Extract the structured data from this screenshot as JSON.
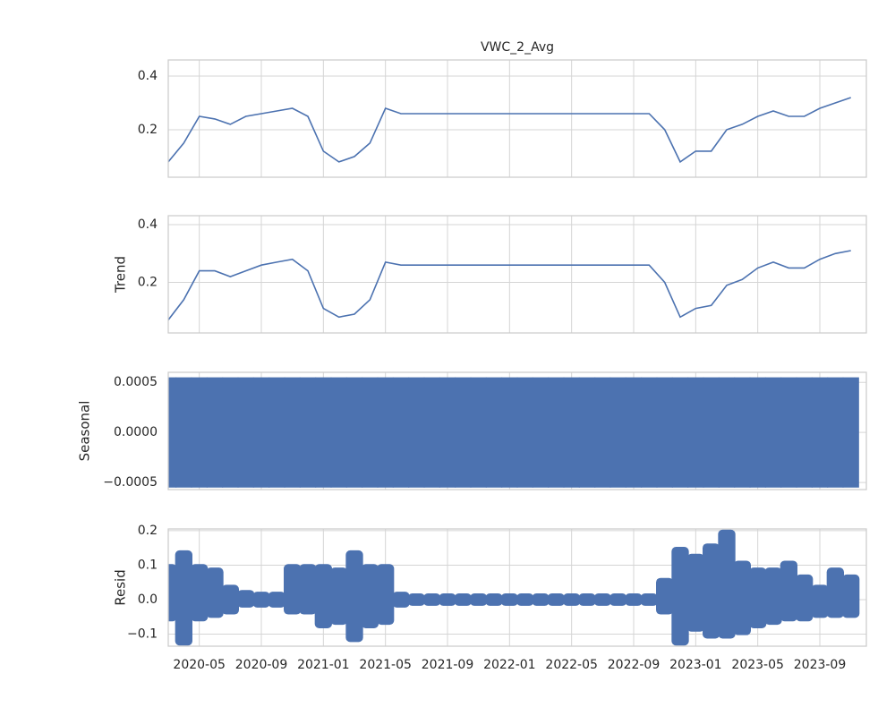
{
  "chart_data": [
    {
      "type": "line",
      "title": "VWC_2_Avg",
      "color": "#4c72b0",
      "x": [
        "2020-03",
        "2020-04",
        "2020-05",
        "2020-06",
        "2020-07",
        "2020-08",
        "2020-09",
        "2020-10",
        "2020-11",
        "2020-12",
        "2021-01",
        "2021-02",
        "2021-03",
        "2021-04",
        "2021-05",
        "2021-06",
        "2021-07",
        "2021-08",
        "2021-09",
        "2021-10",
        "2021-11",
        "2021-12",
        "2022-01",
        "2022-02",
        "2022-03",
        "2022-04",
        "2022-05",
        "2022-06",
        "2022-07",
        "2022-08",
        "2022-09",
        "2022-10",
        "2022-11",
        "2022-12",
        "2023-01",
        "2023-02",
        "2023-03",
        "2023-04",
        "2023-05",
        "2023-06",
        "2023-07",
        "2023-08",
        "2023-09",
        "2023-10",
        "2023-11"
      ],
      "values": [
        0.08,
        0.15,
        0.25,
        0.24,
        0.22,
        0.25,
        0.26,
        0.27,
        0.28,
        0.25,
        0.12,
        0.08,
        0.1,
        0.15,
        0.28,
        0.26,
        0.26,
        0.26,
        0.26,
        0.26,
        0.26,
        0.26,
        0.26,
        0.26,
        0.26,
        0.26,
        0.26,
        0.26,
        0.26,
        0.26,
        0.26,
        0.26,
        0.2,
        0.08,
        0.12,
        0.12,
        0.2,
        0.22,
        0.25,
        0.27,
        0.25,
        0.25,
        0.28,
        0.3,
        0.32
      ],
      "ylim": [
        0.023,
        0.46
      ],
      "yticks": [
        0.2,
        0.4
      ]
    },
    {
      "type": "line",
      "ylabel": "Trend",
      "color": "#4c72b0",
      "x": [
        "2020-03",
        "2020-04",
        "2020-05",
        "2020-06",
        "2020-07",
        "2020-08",
        "2020-09",
        "2020-10",
        "2020-11",
        "2020-12",
        "2021-01",
        "2021-02",
        "2021-03",
        "2021-04",
        "2021-05",
        "2021-06",
        "2021-07",
        "2021-08",
        "2021-09",
        "2021-10",
        "2021-11",
        "2021-12",
        "2022-01",
        "2022-02",
        "2022-03",
        "2022-04",
        "2022-05",
        "2022-06",
        "2022-07",
        "2022-08",
        "2022-09",
        "2022-10",
        "2022-11",
        "2022-12",
        "2023-01",
        "2023-02",
        "2023-03",
        "2023-04",
        "2023-05",
        "2023-06",
        "2023-07",
        "2023-08",
        "2023-09",
        "2023-10",
        "2023-11"
      ],
      "values": [
        0.07,
        0.14,
        0.24,
        0.24,
        0.22,
        0.24,
        0.26,
        0.27,
        0.28,
        0.24,
        0.11,
        0.08,
        0.09,
        0.14,
        0.27,
        0.26,
        0.26,
        0.26,
        0.26,
        0.26,
        0.26,
        0.26,
        0.26,
        0.26,
        0.26,
        0.26,
        0.26,
        0.26,
        0.26,
        0.26,
        0.26,
        0.26,
        0.2,
        0.08,
        0.11,
        0.12,
        0.19,
        0.21,
        0.25,
        0.27,
        0.25,
        0.25,
        0.28,
        0.3,
        0.31
      ],
      "ylim": [
        0.025,
        0.431
      ],
      "yticks": [
        0.2,
        0.4
      ]
    },
    {
      "type": "area",
      "ylabel": "Seasonal",
      "color": "#4c72b0",
      "x": [
        "2020-03",
        "2020-04",
        "2020-05",
        "2020-06",
        "2020-07",
        "2020-08",
        "2020-09",
        "2020-10",
        "2020-11",
        "2020-12",
        "2021-01",
        "2021-02",
        "2021-03",
        "2021-04",
        "2021-05",
        "2021-06",
        "2021-07",
        "2021-08",
        "2021-09",
        "2021-10",
        "2021-11",
        "2021-12",
        "2022-01",
        "2022-02",
        "2022-03",
        "2022-04",
        "2022-05",
        "2022-06",
        "2022-07",
        "2022-08",
        "2022-09",
        "2022-10",
        "2022-11",
        "2022-12",
        "2023-01",
        "2023-02",
        "2023-03",
        "2023-04",
        "2023-05",
        "2023-06",
        "2023-07",
        "2023-08",
        "2023-09",
        "2023-10",
        "2023-11"
      ],
      "lower": [
        -0.00055,
        -0.00055,
        -0.00055,
        -0.00055,
        -0.00055,
        -0.00055,
        -0.00055,
        -0.00055,
        -0.00055,
        -0.00055,
        -0.00055,
        -0.00055,
        -0.00055,
        -0.00055,
        -0.00055,
        -0.00055,
        -0.00055,
        -0.00055,
        -0.00055,
        -0.00055,
        -0.00055,
        -0.00055,
        -0.00055,
        -0.00055,
        -0.00055,
        -0.00055,
        -0.00055,
        -0.00055,
        -0.00055,
        -0.00055,
        -0.00055,
        -0.00055,
        -0.00055,
        -0.00055,
        -0.00055,
        -0.00055,
        -0.00055,
        -0.00055,
        -0.00055,
        -0.00055,
        -0.00055,
        -0.00055,
        -0.00055,
        -0.00055,
        -0.00055
      ],
      "upper": [
        0.00055,
        0.00055,
        0.00055,
        0.00055,
        0.00055,
        0.00055,
        0.00055,
        0.00055,
        0.00055,
        0.00055,
        0.00055,
        0.00055,
        0.00055,
        0.00055,
        0.00055,
        0.00055,
        0.00055,
        0.00055,
        0.00055,
        0.00055,
        0.00055,
        0.00055,
        0.00055,
        0.00055,
        0.00055,
        0.00055,
        0.00055,
        0.00055,
        0.00055,
        0.00055,
        0.00055,
        0.00055,
        0.00055,
        0.00055,
        0.00055,
        0.00055,
        0.00055,
        0.00055,
        0.00055,
        0.00055,
        0.00055,
        0.00055,
        0.00055,
        0.00055,
        0.00055
      ],
      "ylim": [
        -0.00057,
        0.0006
      ],
      "yticks": [
        {
          "value": -0.0005,
          "label": "−0.0005"
        },
        {
          "value": 0,
          "label": "0.0000"
        },
        0.0005
      ]
    },
    {
      "type": "scatter",
      "ylabel": "Resid",
      "color": "#4c72b0",
      "x": [
        "2020-03",
        "2020-04",
        "2020-05",
        "2020-06",
        "2020-07",
        "2020-08",
        "2020-09",
        "2020-10",
        "2020-11",
        "2020-12",
        "2021-01",
        "2021-02",
        "2021-03",
        "2021-04",
        "2021-05",
        "2021-06",
        "2021-07",
        "2021-08",
        "2021-09",
        "2021-10",
        "2021-11",
        "2021-12",
        "2022-01",
        "2022-02",
        "2022-03",
        "2022-04",
        "2022-05",
        "2022-06",
        "2022-07",
        "2022-08",
        "2022-09",
        "2022-10",
        "2022-11",
        "2022-12",
        "2023-01",
        "2023-02",
        "2023-03",
        "2023-04",
        "2023-05",
        "2023-06",
        "2023-07",
        "2023-08",
        "2023-09",
        "2023-10",
        "2023-11"
      ],
      "lower": [
        -0.05,
        -0.12,
        -0.05,
        -0.04,
        -0.03,
        -0.01,
        -0.01,
        -0.01,
        -0.03,
        -0.03,
        -0.07,
        -0.06,
        -0.11,
        -0.07,
        -0.06,
        -0.01,
        -0.005,
        -0.005,
        -0.005,
        -0.005,
        -0.005,
        -0.005,
        -0.005,
        -0.005,
        -0.005,
        -0.005,
        -0.005,
        -0.005,
        -0.005,
        -0.005,
        -0.005,
        -0.005,
        -0.03,
        -0.12,
        -0.08,
        -0.1,
        -0.1,
        -0.09,
        -0.07,
        -0.06,
        -0.05,
        -0.05,
        -0.04,
        -0.04,
        -0.04
      ],
      "upper": [
        0.09,
        0.13,
        0.09,
        0.08,
        0.03,
        0.015,
        0.01,
        0.01,
        0.09,
        0.09,
        0.09,
        0.08,
        0.13,
        0.09,
        0.09,
        0.01,
        0.005,
        0.005,
        0.005,
        0.005,
        0.005,
        0.005,
        0.005,
        0.005,
        0.005,
        0.005,
        0.005,
        0.005,
        0.005,
        0.005,
        0.005,
        0.005,
        0.05,
        0.14,
        0.12,
        0.15,
        0.19,
        0.1,
        0.08,
        0.08,
        0.1,
        0.06,
        0.03,
        0.08,
        0.06
      ],
      "ylim": [
        -0.135,
        0.205
      ],
      "yticks": [
        {
          "value": -0.1,
          "label": "−0.1"
        },
        {
          "value": 0,
          "label": "0.0"
        },
        0.1,
        0.2
      ],
      "xlim": [
        "2020-03",
        "2023-12"
      ],
      "xticks": [
        "2020-05",
        "2020-09",
        "2021-01",
        "2021-05",
        "2021-09",
        "2022-01",
        "2022-05",
        "2022-09",
        "2023-01",
        "2023-05",
        "2023-09"
      ]
    }
  ]
}
